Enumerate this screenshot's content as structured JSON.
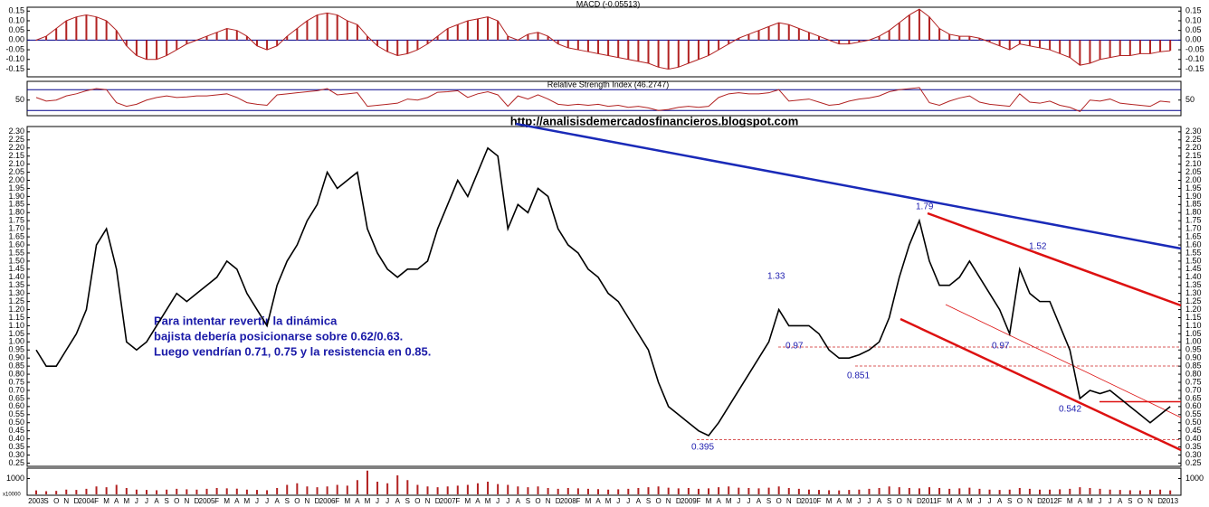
{
  "url": "http://analisisdemercadosfinancieros.blogspot.com",
  "note": [
    "Para intentar revertir la dinámica",
    "bajista debería posicionarse sobre 0.62/0.63.",
    "Luego vendrían 0.71, 0.75 y la resistencia en 0.85."
  ],
  "chart_data": [
    {
      "type": "bar",
      "title": "MACD (-0.05513)",
      "color": "#b22222",
      "line_color": "#b22222",
      "hlines": [
        0
      ],
      "hline_color": "#00008b",
      "ylim": [
        -0.19,
        0.17
      ],
      "yticks": [
        0.15,
        {
          "value": 0.1,
          "label": "0.10"
        },
        0.05,
        {
          "value": 0,
          "label": "0.00"
        },
        -0.05,
        {
          "value": -0.1,
          "label": "-0.10"
        },
        -0.15
      ],
      "values": [
        0.0,
        0.02,
        0.06,
        0.1,
        0.12,
        0.13,
        0.12,
        0.1,
        0.05,
        -0.03,
        -0.08,
        -0.1,
        -0.1,
        -0.08,
        -0.05,
        -0.02,
        0.0,
        0.02,
        0.04,
        0.06,
        0.05,
        0.02,
        -0.03,
        -0.05,
        -0.03,
        0.02,
        0.06,
        0.1,
        0.13,
        0.14,
        0.13,
        0.1,
        0.08,
        0.02,
        -0.03,
        -0.06,
        -0.08,
        -0.07,
        -0.05,
        -0.02,
        0.02,
        0.06,
        0.08,
        0.1,
        0.11,
        0.12,
        0.1,
        0.02,
        0.0,
        0.03,
        0.04,
        0.02,
        -0.02,
        -0.04,
        -0.05,
        -0.06,
        -0.07,
        -0.08,
        -0.09,
        -0.1,
        -0.11,
        -0.12,
        -0.14,
        -0.15,
        -0.14,
        -0.12,
        -0.1,
        -0.08,
        -0.05,
        -0.02,
        0.01,
        0.03,
        0.05,
        0.07,
        0.09,
        0.08,
        0.06,
        0.04,
        0.02,
        0.0,
        -0.02,
        -0.02,
        -0.01,
        0.0,
        0.02,
        0.05,
        0.09,
        0.13,
        0.16,
        0.12,
        0.06,
        0.03,
        0.02,
        0.02,
        0.01,
        -0.01,
        -0.03,
        -0.05,
        -0.02,
        -0.03,
        -0.04,
        -0.05,
        -0.07,
        -0.09,
        -0.13,
        -0.12,
        -0.1,
        -0.09,
        -0.08,
        -0.08,
        -0.07,
        -0.07,
        -0.06,
        -0.055
      ]
    },
    {
      "type": "line",
      "title": "Relative Strength Index (46.2747)",
      "color": "#b22222",
      "hlines": [
        70,
        30
      ],
      "hline_color": "#00008b",
      "ylim": [
        20,
        86
      ],
      "yticks": [
        50
      ],
      "values": [
        55,
        48,
        50,
        58,
        62,
        68,
        72,
        70,
        45,
        38,
        42,
        50,
        55,
        58,
        55,
        56,
        58,
        58,
        60,
        62,
        55,
        45,
        42,
        40,
        60,
        62,
        64,
        66,
        68,
        72,
        60,
        62,
        64,
        38,
        40,
        42,
        44,
        52,
        50,
        55,
        65,
        66,
        68,
        55,
        62,
        66,
        60,
        38,
        58,
        52,
        60,
        52,
        42,
        40,
        42,
        40,
        42,
        38,
        40,
        36,
        38,
        35,
        30,
        32,
        36,
        38,
        36,
        38,
        55,
        62,
        64,
        62,
        62,
        64,
        70,
        48,
        50,
        52,
        46,
        40,
        42,
        48,
        52,
        54,
        58,
        66,
        70,
        72,
        74,
        45,
        40,
        48,
        54,
        58,
        46,
        42,
        40,
        38,
        62,
        46,
        44,
        48,
        40,
        36,
        28,
        50,
        48,
        52,
        44,
        42,
        40,
        38,
        48,
        46
      ]
    },
    {
      "type": "line",
      "color": "#000000",
      "annotations": [
        "1.79",
        "1.52",
        "1.33",
        "0.97",
        "0.97",
        "0.851",
        "0.395",
        "0.542"
      ],
      "ylim": [
        0.23,
        2.33
      ],
      "yticks": [
        {
          "value": 2.3,
          "label": "2.30"
        },
        2.25,
        {
          "value": 2.2,
          "label": "2.20"
        },
        2.15,
        {
          "value": 2.1,
          "label": "2.10"
        },
        2.05,
        {
          "value": 2,
          "label": "2.00"
        },
        1.95,
        {
          "value": 1.9,
          "label": "1.90"
        },
        1.85,
        {
          "value": 1.8,
          "label": "1.80"
        },
        1.75,
        {
          "value": 1.7,
          "label": "1.70"
        },
        1.65,
        {
          "value": 1.6,
          "label": "1.60"
        },
        1.55,
        {
          "value": 1.5,
          "label": "1.50"
        },
        1.45,
        {
          "value": 1.4,
          "label": "1.40"
        },
        1.35,
        {
          "value": 1.3,
          "label": "1.30"
        },
        1.25,
        {
          "value": 1.2,
          "label": "1.20"
        },
        1.15,
        {
          "value": 1.1,
          "label": "1.10"
        },
        1.05,
        {
          "value": 1,
          "label": "1.00"
        },
        0.95,
        {
          "value": 0.9,
          "label": "0.90"
        },
        0.85,
        {
          "value": 0.8,
          "label": "0.80"
        },
        0.75,
        {
          "value": 0.7,
          "label": "0.70"
        },
        0.65,
        {
          "value": 0.6,
          "label": "0.60"
        },
        0.55,
        {
          "value": 0.5,
          "label": "0.50"
        },
        0.45,
        {
          "value": 0.4,
          "label": "0.40"
        },
        0.35,
        {
          "value": 0.3,
          "label": "0.30"
        },
        0.25
      ],
      "categories": [
        "2003",
        "S",
        "O",
        "N",
        "D",
        "2004",
        "F",
        "M",
        "A",
        "M",
        "J",
        "J",
        "A",
        "S",
        "O",
        "N",
        "D",
        "2005",
        "F",
        "M",
        "A",
        "M",
        "J",
        "J",
        "A",
        "S",
        "O",
        "N",
        "D",
        "2006",
        "F",
        "M",
        "A",
        "M",
        "J",
        "J",
        "A",
        "S",
        "O",
        "N",
        "D",
        "2007",
        "F",
        "M",
        "A",
        "M",
        "J",
        "J",
        "A",
        "S",
        "O",
        "N",
        "D",
        "2008",
        "F",
        "M",
        "A",
        "M",
        "J",
        "J",
        "A",
        "S",
        "O",
        "N",
        "D",
        "2009",
        "F",
        "M",
        "A",
        "M",
        "J",
        "J",
        "A",
        "S",
        "O",
        "N",
        "D",
        "2010",
        "F",
        "M",
        "A",
        "M",
        "J",
        "J",
        "A",
        "S",
        "O",
        "N",
        "D",
        "2011",
        "F",
        "M",
        "A",
        "M",
        "J",
        "J",
        "A",
        "S",
        "O",
        "N",
        "D",
        "2012",
        "F",
        "M",
        "A",
        "M",
        "J",
        "J",
        "A",
        "S",
        "O",
        "N",
        "D",
        "2013"
      ],
      "values": [
        0.95,
        0.85,
        0.85,
        0.95,
        1.05,
        1.2,
        1.6,
        1.7,
        1.45,
        1.0,
        0.95,
        1.0,
        1.1,
        1.2,
        1.3,
        1.25,
        1.3,
        1.35,
        1.4,
        1.5,
        1.45,
        1.3,
        1.2,
        1.1,
        1.35,
        1.5,
        1.6,
        1.75,
        1.85,
        2.05,
        1.95,
        2.0,
        2.05,
        1.7,
        1.55,
        1.45,
        1.4,
        1.45,
        1.45,
        1.5,
        1.7,
        1.85,
        2.0,
        1.9,
        2.05,
        2.2,
        2.15,
        1.7,
        1.85,
        1.8,
        1.95,
        1.9,
        1.7,
        1.6,
        1.55,
        1.45,
        1.4,
        1.3,
        1.25,
        1.15,
        1.05,
        0.95,
        0.75,
        0.6,
        0.55,
        0.5,
        0.45,
        0.42,
        0.5,
        0.6,
        0.7,
        0.8,
        0.9,
        1.0,
        1.2,
        1.1,
        1.1,
        1.1,
        1.05,
        0.95,
        0.9,
        0.9,
        0.92,
        0.95,
        1.0,
        1.15,
        1.4,
        1.6,
        1.75,
        1.5,
        1.35,
        1.35,
        1.4,
        1.5,
        1.4,
        1.3,
        1.2,
        1.05,
        1.45,
        1.3,
        1.25,
        1.25,
        1.1,
        0.95,
        0.65,
        0.7,
        0.68,
        0.7,
        0.65,
        0.6,
        0.55,
        0.5,
        0.55,
        0.6
      ]
    },
    {
      "type": "bar",
      "color": "#b22222",
      "unit_label": "x10000",
      "ylim": [
        0,
        1600
      ],
      "yticks": [
        1000
      ],
      "values": [
        250,
        200,
        220,
        300,
        280,
        350,
        500,
        450,
        600,
        400,
        300,
        280,
        260,
        300,
        350,
        320,
        300,
        350,
        400,
        380,
        360,
        300,
        280,
        260,
        400,
        600,
        700,
        500,
        450,
        500,
        600,
        550,
        900,
        1500,
        800,
        700,
        1200,
        900,
        600,
        500,
        450,
        500,
        550,
        600,
        700,
        800,
        650,
        600,
        500,
        450,
        500,
        400,
        350,
        400,
        380,
        350,
        330,
        300,
        320,
        350,
        400,
        450,
        500,
        420,
        380,
        400,
        350,
        380,
        450,
        500,
        420,
        400,
        380,
        420,
        500,
        400,
        350,
        300,
        280,
        260,
        250,
        280,
        300,
        350,
        400,
        500,
        450,
        400,
        380,
        450,
        400,
        350,
        380,
        420,
        350,
        300,
        280,
        300,
        400,
        350,
        300,
        300,
        320,
        350,
        450,
        400,
        350,
        300,
        280,
        260,
        250,
        280,
        300,
        250
      ]
    }
  ]
}
